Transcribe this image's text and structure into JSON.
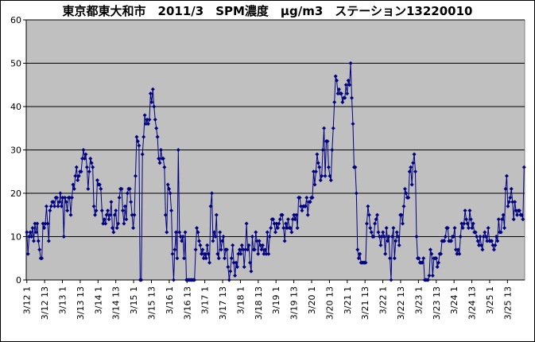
{
  "chart_data": {
    "type": "line",
    "title": "東京都東大和市　2011/3　SPM濃度　μg/m3　ステーション13220010",
    "xlabel": "",
    "ylabel": "",
    "ylim": [
      0,
      60
    ],
    "y_ticks": [
      "0",
      "10",
      "20",
      "30",
      "40",
      "50",
      "60"
    ],
    "x_tick_labels": [
      "3/12 1",
      "3/12 13",
      "3/13 1",
      "3/13 13",
      "3/14 1",
      "3/14 13",
      "3/15 1",
      "3/15 13",
      "3/16 1",
      "3/16 13",
      "3/17 1",
      "3/17 13",
      "3/18 1",
      "3/18 13",
      "3/19 1",
      "3/19 13",
      "3/20 1",
      "3/20 13",
      "3/21 1",
      "3/21 13",
      "3/22 1",
      "3/22 13",
      "3/23 1",
      "3/23 13",
      "3/24 1",
      "3/24 13",
      "3/25 1",
      "3/25 13"
    ],
    "grid": "horizontal",
    "legend": "none",
    "plot_background": "#c0c0c0",
    "series_color": "#000080",
    "series": [
      {
        "values": [
          11,
          6,
          10,
          11,
          10,
          12,
          9,
          13,
          11,
          13,
          9,
          7,
          5,
          5,
          13,
          12,
          13,
          17,
          13,
          9,
          16,
          17,
          18,
          18,
          17,
          19,
          19,
          17,
          18,
          20,
          17,
          19,
          10,
          19,
          18,
          16,
          19,
          19,
          15,
          19,
          22,
          21,
          24,
          26,
          23,
          24,
          25,
          25,
          28,
          30,
          28,
          29,
          26,
          21,
          25,
          28,
          27,
          26,
          17,
          15,
          16,
          23,
          22,
          22,
          21,
          16,
          13,
          14,
          13,
          15,
          16,
          14,
          15,
          18,
          12,
          11,
          15,
          16,
          12,
          13,
          19,
          21,
          21,
          16,
          13,
          17,
          14,
          20,
          21,
          21,
          18,
          15,
          12,
          15,
          24,
          33,
          32,
          31,
          0,
          0,
          29,
          33,
          38,
          36,
          37,
          36,
          37,
          43,
          41,
          44,
          40,
          37,
          35,
          33,
          28,
          27,
          30,
          28,
          28,
          26,
          15,
          11,
          22,
          21,
          20,
          16,
          6,
          0,
          7,
          11,
          5,
          30,
          11,
          10,
          9,
          10,
          5,
          11,
          0,
          0,
          0,
          0,
          0,
          0,
          0,
          0,
          7,
          12,
          11,
          9,
          8,
          6,
          7,
          5,
          6,
          5,
          8,
          6,
          4,
          17,
          20,
          9,
          11,
          10,
          15,
          6,
          5,
          11,
          7,
          9,
          10,
          5,
          7,
          7,
          3,
          0,
          2,
          5,
          8,
          4,
          1,
          4,
          3,
          6,
          7,
          6,
          8,
          7,
          3,
          7,
          13,
          7,
          8,
          4,
          2,
          10,
          7,
          7,
          11,
          9,
          6,
          9,
          8,
          7,
          8,
          6,
          7,
          6,
          11,
          6,
          10,
          12,
          14,
          14,
          13,
          11,
          13,
          12,
          13,
          14,
          15,
          15,
          12,
          9,
          13,
          12,
          14,
          12,
          12,
          11,
          14,
          15,
          14,
          15,
          12,
          19,
          19,
          17,
          16,
          17,
          17,
          17,
          19,
          15,
          18,
          18,
          19,
          19,
          25,
          22,
          25,
          29,
          27,
          26,
          23,
          24,
          30,
          35,
          24,
          32,
          32,
          26,
          24,
          23,
          30,
          35,
          41,
          47,
          46,
          43,
          44,
          43,
          43,
          41,
          42,
          42,
          45,
          43,
          46,
          45,
          50,
          42,
          36,
          26,
          26,
          20,
          7,
          5,
          6,
          4,
          4,
          4,
          4,
          4,
          13,
          17,
          15,
          12,
          11,
          10,
          10,
          13,
          14,
          15,
          11,
          10,
          8,
          10,
          11,
          10,
          6,
          12,
          9,
          10,
          5,
          0,
          10,
          12,
          5,
          9,
          11,
          10,
          8,
          15,
          15,
          13,
          17,
          21,
          20,
          19,
          19,
          25,
          26,
          22,
          27,
          29,
          25,
          10,
          5,
          5,
          4,
          4,
          4,
          5,
          0,
          0,
          0,
          0,
          1,
          7,
          6,
          1,
          5,
          5,
          5,
          3,
          4,
          6,
          6,
          9,
          9,
          9,
          10,
          12,
          12,
          9,
          9,
          9,
          10,
          10,
          12,
          7,
          6,
          7,
          6,
          10,
          13,
          12,
          13,
          16,
          14,
          13,
          12,
          16,
          14,
          12,
          13,
          11,
          11,
          10,
          9,
          8,
          10,
          8,
          7,
          10,
          11,
          10,
          9,
          12,
          9,
          9,
          9,
          8,
          7,
          8,
          10,
          9,
          14,
          11,
          11,
          14,
          15,
          12,
          21,
          24,
          17,
          18,
          19,
          21,
          18,
          14,
          18,
          16,
          15,
          16,
          16,
          15,
          15,
          14,
          26
        ]
      }
    ]
  }
}
